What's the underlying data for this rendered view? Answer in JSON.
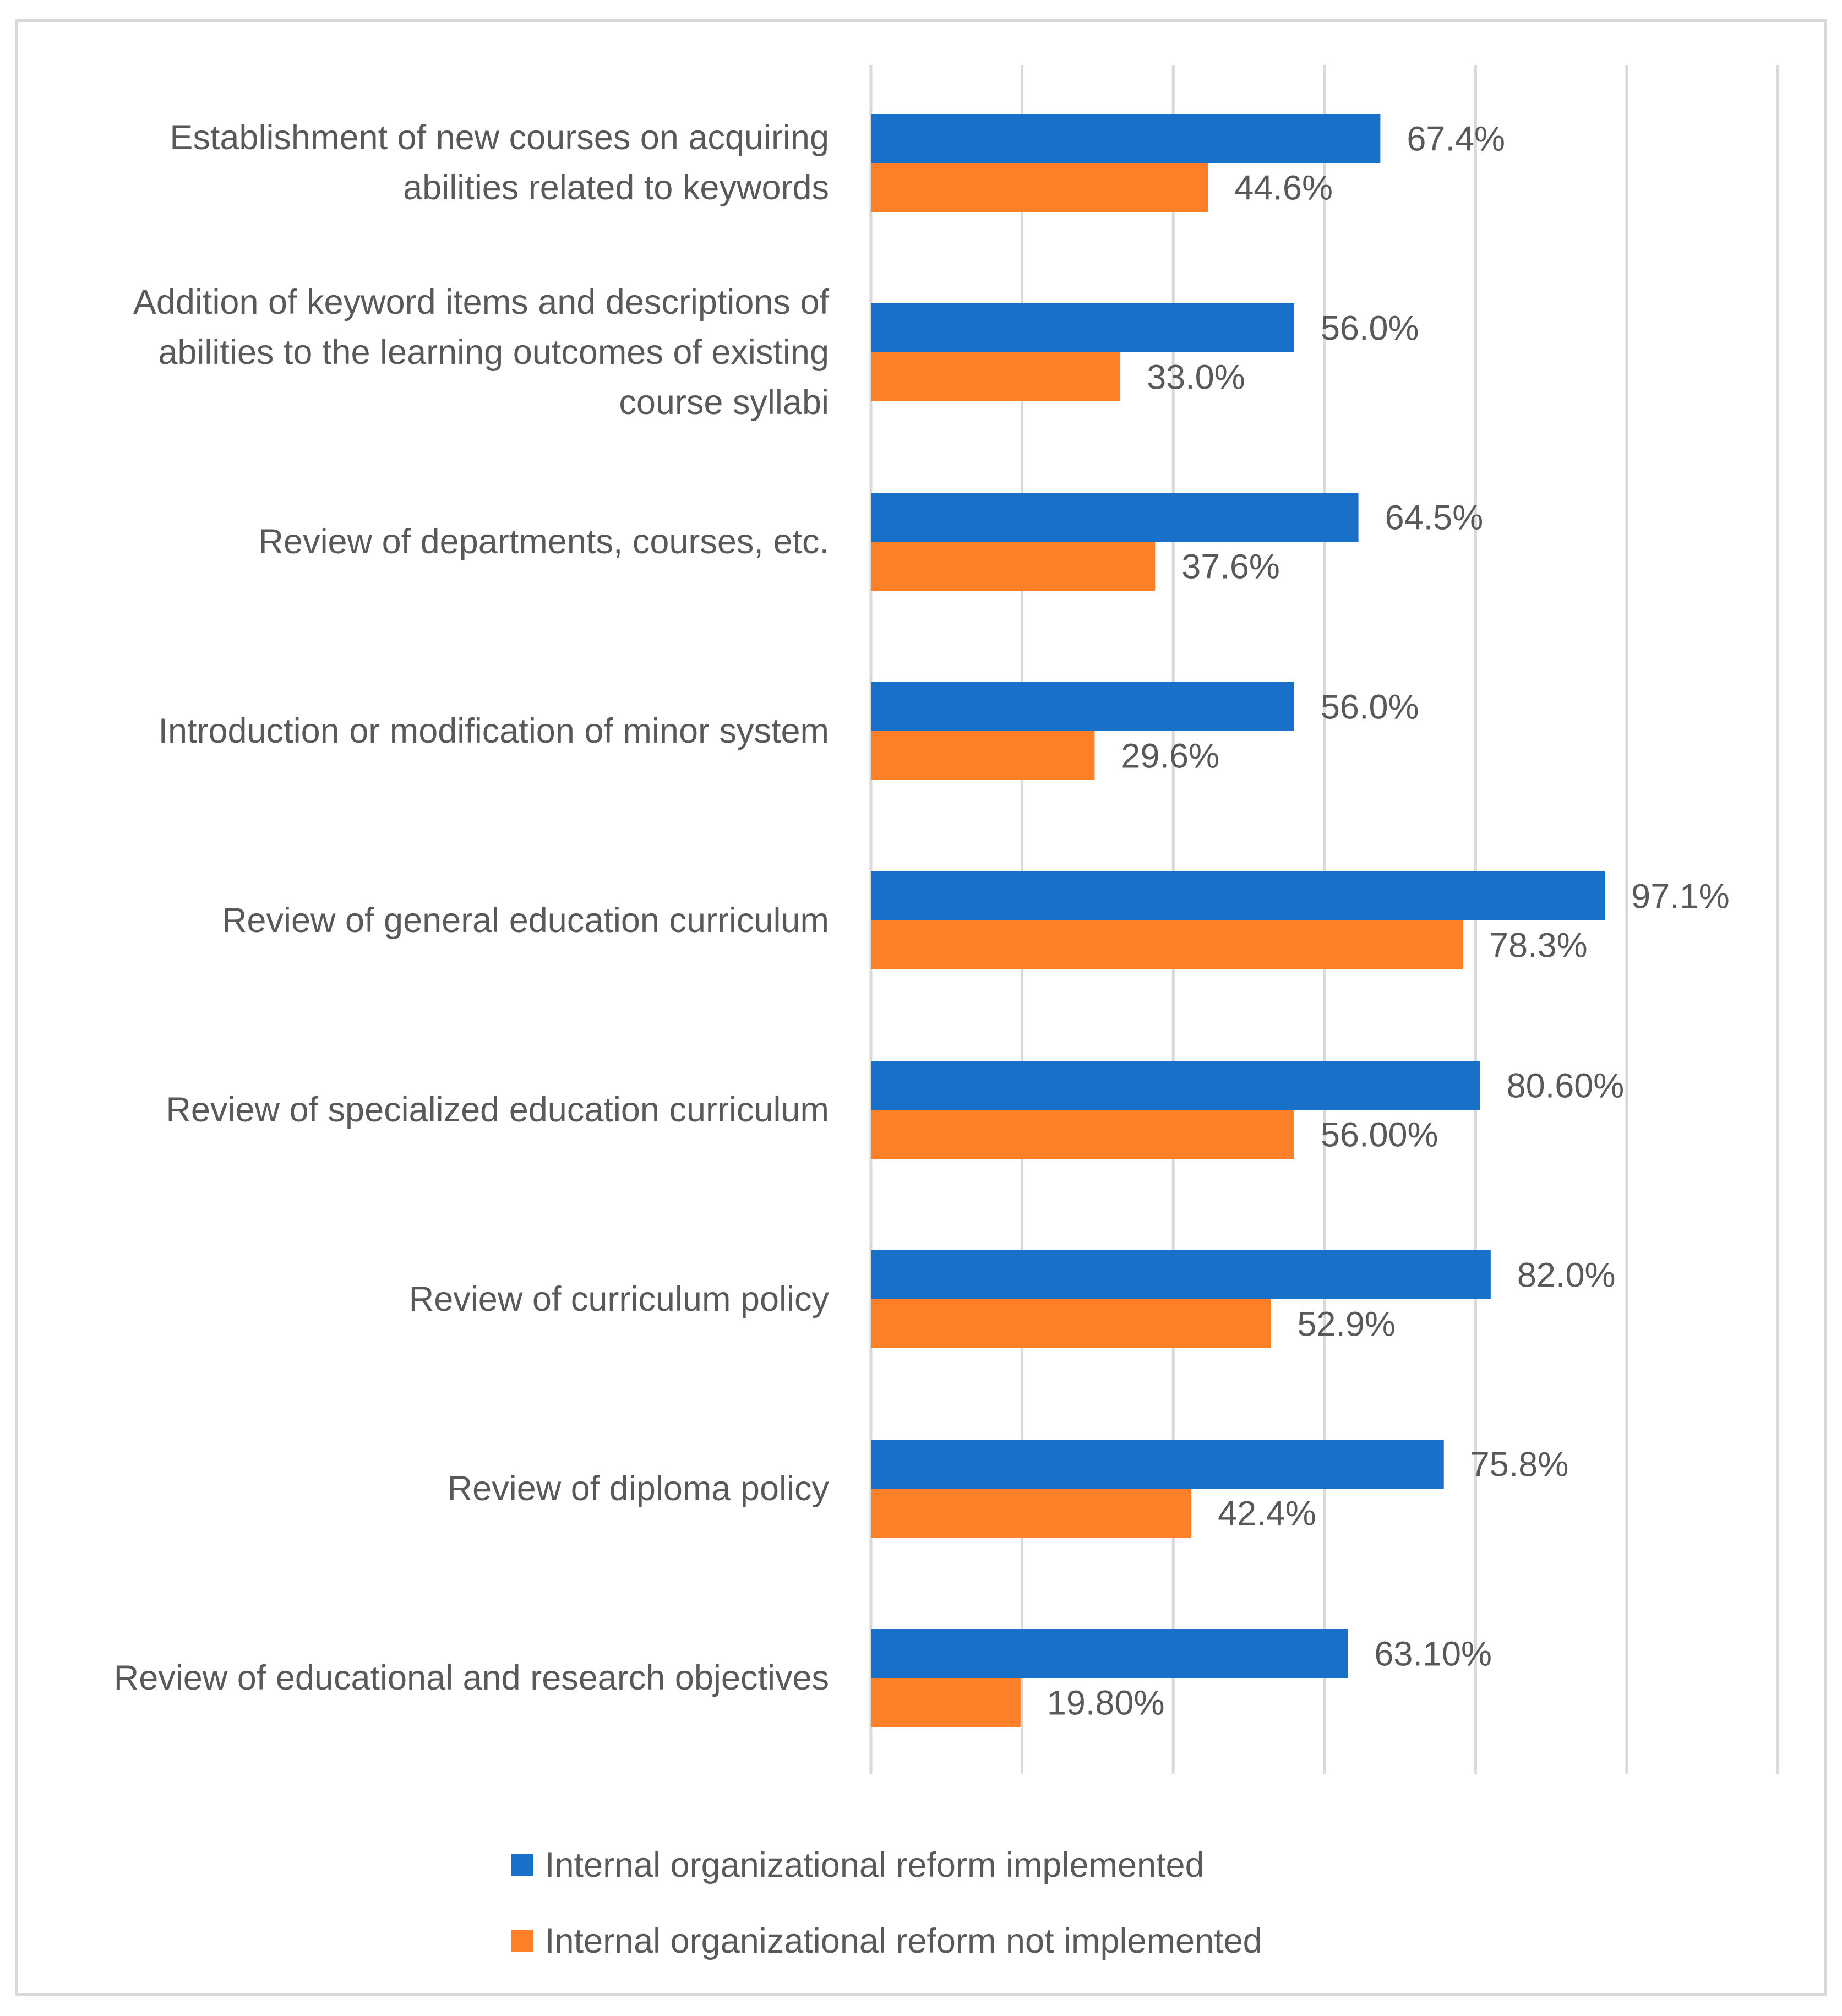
{
  "chart_data": {
    "type": "bar",
    "orientation": "horizontal",
    "title": "",
    "xlabel": "",
    "ylabel": "",
    "xlim": [
      0,
      120
    ],
    "grid": true,
    "legend_position": "bottom",
    "categories": [
      "Establishment of new courses on acquiring abilities related to keywords",
      "Addition of keyword items and descriptions of abilities to the learning outcomes of existing course syllabi",
      "Review of departments, courses, etc.",
      "Introduction or modification of minor system",
      "Review of general education curriculum",
      "Review of specialized education curriculum",
      "Review of curriculum policy",
      "Review of diploma policy",
      "Review of educational and research objectives"
    ],
    "category_lines": [
      [
        "Establishment of new courses on acquiring",
        "abilities related to keywords"
      ],
      [
        "Addition of keyword items and descriptions of",
        "abilities to the learning outcomes of existing",
        "course syllabi"
      ],
      [
        "Review of departments, courses, etc."
      ],
      [
        "Introduction or modification of minor system"
      ],
      [
        "Review of general education curriculum"
      ],
      [
        "Review of specialized education curriculum"
      ],
      [
        "Review of curriculum policy"
      ],
      [
        "Review of diploma policy"
      ],
      [
        "Review of educational and research objectives"
      ]
    ],
    "series": [
      {
        "name": "Internal organizational reform implemented",
        "color": "#1870c9",
        "values": [
          67.4,
          56.0,
          64.5,
          56.0,
          97.1,
          80.6,
          82.0,
          75.8,
          63.1
        ],
        "labels": [
          "67.4%",
          "56.0%",
          "64.5%",
          "56.0%",
          "97.1%",
          "80.60%",
          "82.0%",
          "75.8%",
          "63.10%"
        ]
      },
      {
        "name": "Internal organizational reform not implemented",
        "color": "#fd7f28",
        "values": [
          44.6,
          33.0,
          37.6,
          29.6,
          78.3,
          56.0,
          52.9,
          42.4,
          19.8
        ],
        "labels": [
          "44.6%",
          "33.0%",
          "37.6%",
          "29.6%",
          "78.3%",
          "56.00%",
          "52.9%",
          "42.4%",
          "19.80%"
        ]
      }
    ]
  }
}
